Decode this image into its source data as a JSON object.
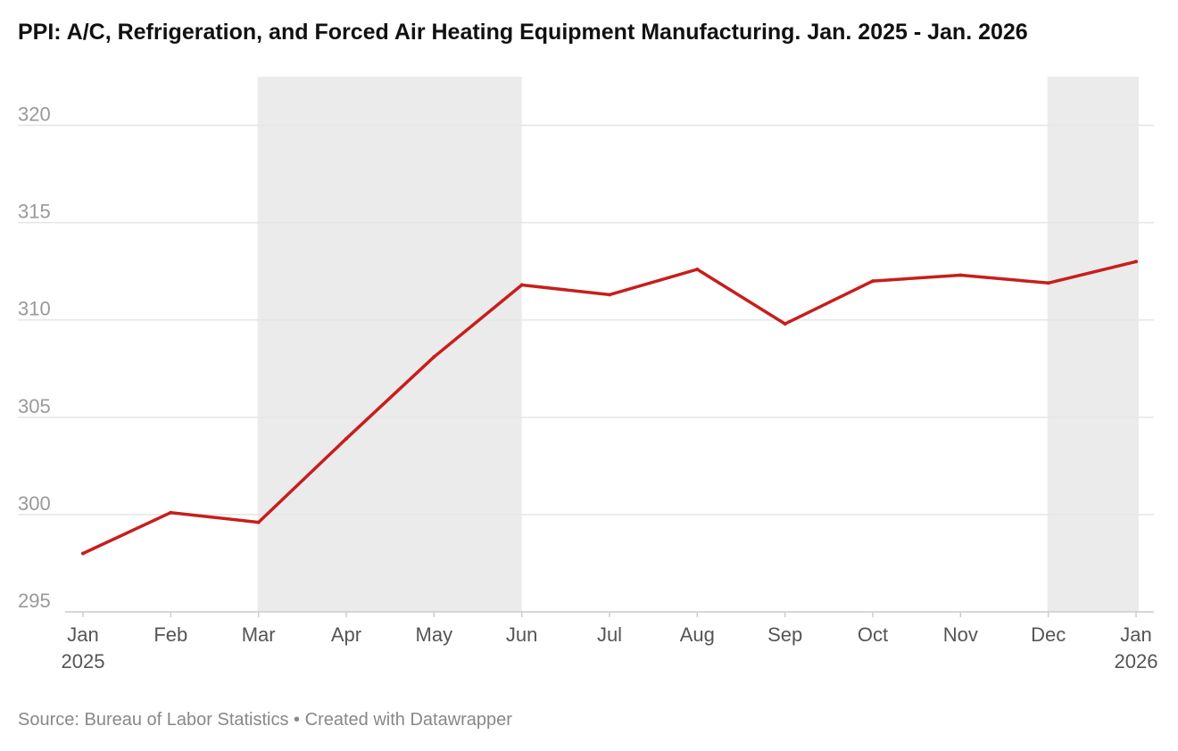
{
  "title": "PPI: A/C, Refrigeration, and Forced Air Heating Equipment Manufacturing. Jan. 2025 - Jan. 2026",
  "footer": {
    "source": "Source: Bureau of Labor Statistics",
    "separator": " • ",
    "credit": "Created with Datawrapper"
  },
  "chart_data": {
    "type": "line",
    "title": "PPI: A/C, Refrigeration, and Forced Air Heating Equipment Manufacturing. Jan. 2025 - Jan. 2026",
    "xlabel": "",
    "ylabel": "",
    "categories": [
      "Jan 2025",
      "Feb",
      "Mar",
      "Apr",
      "May",
      "Jun",
      "Jul",
      "Aug",
      "Sep",
      "Oct",
      "Nov",
      "Dec",
      "Jan 2026"
    ],
    "x_tick_labels": [
      [
        "Jan",
        "2025"
      ],
      [
        "Feb"
      ],
      [
        "Mar"
      ],
      [
        "Apr"
      ],
      [
        "May"
      ],
      [
        "Jun"
      ],
      [
        "Jul"
      ],
      [
        "Aug"
      ],
      [
        "Sep"
      ],
      [
        "Oct"
      ],
      [
        "Nov"
      ],
      [
        "Dec"
      ],
      [
        "Jan",
        "2026"
      ]
    ],
    "series": [
      {
        "color": "#c71e1d",
        "values": [
          298.0,
          300.1,
          299.6,
          303.9,
          308.1,
          311.8,
          311.3,
          312.6,
          309.8,
          312.0,
          312.3,
          311.9,
          313.0
        ]
      }
    ],
    "ylim": [
      295,
      322.5
    ],
    "yticks": [
      295,
      300,
      305,
      310,
      315,
      320
    ],
    "grid": true,
    "legend": "none",
    "shaded_ranges": [
      {
        "from": "Mar",
        "to": "Jun"
      },
      {
        "from": "Dec",
        "to": "Jan 2026"
      }
    ],
    "colors": {
      "line": "#c71e1d",
      "shade": "#ebebeb",
      "grid": "#e5e5e5",
      "axis": "#cccccc"
    }
  }
}
